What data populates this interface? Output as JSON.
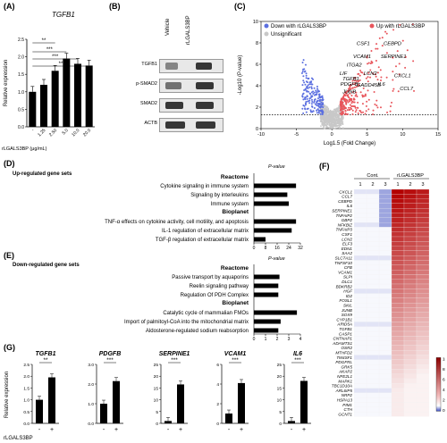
{
  "panels": {
    "A": {
      "label": "(A)",
      "title": "TGFB1",
      "ylabel": "Relative expression",
      "xlabel": "rLGALS3BP (μg/mL)",
      "sig": [
        "**",
        "***",
        "***",
        "**"
      ]
    },
    "B": {
      "label": "(B)",
      "cols": [
        "Vehicle",
        "rLGALS3BP"
      ],
      "rows": [
        "TGFB1",
        "p-SMAD2",
        "SMAD2",
        "ACTB"
      ]
    },
    "C": {
      "label": "(C)",
      "legend": {
        "down": "Down with rLGALS3BP",
        "up": "Up with rLGALS3BP",
        "ns": "Unsignificant"
      },
      "xlabel": "Log1.5 (Fold Change)",
      "ylabel": "-Log10 (P-value)",
      "genes": [
        "CSF1",
        "CEBPD",
        "VCAM1",
        "SERPINE1",
        "ITGA2",
        "LIF",
        "LCN2",
        "TGFB1",
        "PDGFB",
        "GADD45B",
        "JUNB",
        "CXCL1",
        "IL6",
        "CCL7"
      ]
    },
    "D": {
      "label": "(D)",
      "title": "Up-regulated gene sets",
      "pvalue_label": "P-value",
      "groups": [
        {
          "name": "Reactome",
          "items": [
            "Cytokine signaling in immune system",
            "Signaling by interleukins",
            "Immune system"
          ]
        },
        {
          "name": "Bioplanet",
          "items": [
            "TNF-α effects on cytokine activity, cell motility, and apoptosis",
            "IL-1 regulation of extracellular matrix",
            "TGF-β regulation of extracellular matrix"
          ]
        }
      ]
    },
    "E": {
      "label": "(E)",
      "title": "Down-regulated gene sets",
      "pvalue_label": "P-value",
      "groups": [
        {
          "name": "Reactome",
          "items": [
            "Passive transport by aquaporins",
            "Reelin signaling pathway",
            "Regulation Of PDH Complex"
          ]
        },
        {
          "name": "Bioplanet",
          "items": [
            "Catalytic cycle of mammalian FMOs",
            "Import of palmitoyl-CoA into the mitochondrial matrix",
            "Aldosterone-regulated sodium reabsorption"
          ]
        }
      ]
    },
    "F": {
      "label": "(F)",
      "groups": [
        "Cont.",
        "rLGALS3BP"
      ],
      "reps": [
        "1",
        "2",
        "3",
        "1",
        "2",
        "3"
      ],
      "genes": [
        "CXCL1",
        "CCL7",
        "CEBPD",
        "IL6",
        "SERPINE1",
        "TNFAIP2",
        "GBP2",
        "NFKBIZ",
        "TNFAIP3",
        "CSF1",
        "LCN2",
        "ELF3",
        "EDN1",
        "SAA2",
        "SLC7A11",
        "TNFSF10",
        "CFB",
        "VCAM1",
        "SLPI",
        "DLC1",
        "BDKRB2",
        "HGF",
        "ID2",
        "FOSL1",
        "SKIL",
        "JUNB",
        "SOX9",
        "CYP1B1",
        "ARID5A",
        "TGFB1",
        "CASP1",
        "CNTNAP1",
        "ADAMTS1",
        "OSR2",
        "MTHFD2",
        "TM4SF1",
        "PDGFRL",
        "GRK5",
        "AKAP2",
        "NFE2L1",
        "MAPK1",
        "TBC1D10A",
        "ARL6IP5",
        "NRP2",
        "HSPA13",
        "PIM1",
        "CTH",
        "GCNT1"
      ],
      "colorbar": {
        "label": "Fold Change",
        "ticks": [
          "10",
          "8",
          "6",
          "4",
          "2",
          "0"
        ]
      }
    },
    "G": {
      "label": "(G)",
      "ylabel": "Relative expression",
      "xlabel": "rLGALS3BP",
      "genes": [
        "TGFB1",
        "PDGFB",
        "SERPINE1",
        "VCAM1",
        "IL6"
      ],
      "sig": [
        "**",
        "***",
        "***",
        "***",
        "***"
      ],
      "ticks": [
        "-",
        "+"
      ]
    }
  },
  "chart_data": [
    {
      "type": "bar",
      "panel": "A",
      "title": "TGFB1",
      "categories": [
        "-",
        "1.25",
        "2.50",
        "5.0",
        "10.0",
        "20.0"
      ],
      "values": [
        1.0,
        1.2,
        1.6,
        1.95,
        1.8,
        1.75
      ],
      "ylim": [
        0,
        2.5
      ],
      "yticks": [
        0,
        0.5,
        1.0,
        1.5,
        2.0,
        2.5
      ],
      "ylabel": "Relative expression",
      "xlabel": "rLGALS3BP (μg/mL)"
    },
    {
      "type": "bar",
      "panel": "D",
      "orientation": "horizontal",
      "xlabel": "P-value",
      "xlim": [
        0,
        32
      ],
      "xticks": [
        0,
        8,
        16,
        24,
        32
      ],
      "categories": [
        "Cytokine signaling in immune system",
        "Signaling by interleukins",
        "Immune system",
        "TNF-α effects on cytokine activity, cell motility, and apoptosis",
        "IL-1 regulation of extracellular matrix",
        "TGF-β regulation of extracellular matrix"
      ],
      "values": [
        29,
        23,
        24,
        29,
        26,
        8
      ]
    },
    {
      "type": "bar",
      "panel": "E",
      "orientation": "horizontal",
      "xlabel": "P-value",
      "xlim": [
        0,
        4
      ],
      "xticks": [
        0,
        1,
        2,
        3,
        4
      ],
      "categories": [
        "Passive transport by aquaporins",
        "Reelin signaling pathway",
        "Regulation Of PDH Complex",
        "Catalytic cycle of mammalian FMOs",
        "Import of palmitoyl-CoA into the mitochondrial matrix",
        "Aldosterone-regulated sodium reabsorption"
      ],
      "values": [
        2.2,
        2.1,
        2.1,
        3.7,
        2.3,
        2.1
      ]
    },
    {
      "type": "bar",
      "panel": "G",
      "series": [
        {
          "name": "TGFB1",
          "categories": [
            "-",
            "+"
          ],
          "values": [
            1.0,
            1.95
          ],
          "ylim": [
            0,
            2.5
          ],
          "yticks": [
            0,
            0.5,
            1.0,
            1.5,
            2.0,
            2.5
          ]
        },
        {
          "name": "PDGFB",
          "categories": [
            "-",
            "+"
          ],
          "values": [
            1.0,
            2.15
          ],
          "ylim": [
            0,
            3
          ],
          "yticks": [
            0,
            1,
            2,
            3
          ]
        },
        {
          "name": "SERPINE1",
          "categories": [
            "-",
            "+"
          ],
          "values": [
            1.0,
            16.5
          ],
          "ylim": [
            0,
            25
          ],
          "yticks": [
            0,
            5,
            10,
            15,
            20,
            25
          ]
        },
        {
          "name": "VCAM1",
          "categories": [
            "-",
            "+"
          ],
          "values": [
            1.0,
            4.1
          ],
          "ylim": [
            0,
            6
          ],
          "yticks": [
            0,
            2,
            4,
            6
          ]
        },
        {
          "name": "IL6",
          "categories": [
            "-",
            "+"
          ],
          "values": [
            1.0,
            18
          ],
          "ylim": [
            0,
            25
          ],
          "yticks": [
            0,
            5,
            10,
            15,
            20,
            25
          ]
        }
      ]
    },
    {
      "type": "scatter",
      "panel": "C",
      "xlabel": "Log1.5 (Fold Change)",
      "ylabel": "-Log10 (P-value)",
      "xlim": [
        -10,
        15
      ],
      "ylim": [
        0,
        10
      ],
      "xticks": [
        -10,
        -5,
        0,
        5,
        10,
        15
      ],
      "yticks": [
        0,
        2,
        4,
        6,
        8,
        10
      ],
      "threshold_y": 1.3
    }
  ],
  "colors": {
    "up": "#e8555b",
    "down": "#5b6fe0",
    "ns": "#c8c8c8",
    "bar": "#000000",
    "heat_high": "#b30000",
    "heat_low": "#ffffff",
    "heat_neg": "#3b4cc0"
  }
}
